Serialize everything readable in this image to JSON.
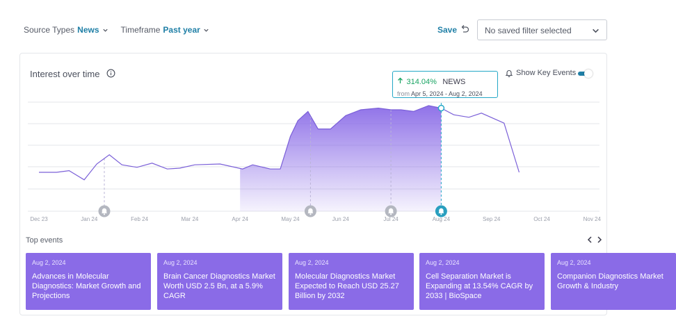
{
  "filters": {
    "source_label": "Source Types",
    "source_value": "News",
    "timeframe_label": "Timeframe",
    "timeframe_value": "Past year"
  },
  "toolbar": {
    "save_label": "Save",
    "saved_filter_placeholder": "No saved filter selected"
  },
  "card": {
    "title": "Interest over time",
    "show_key_events_label": "Show Key Events",
    "show_key_events_on": true
  },
  "tooltip": {
    "change": "314.04%",
    "source": "NEWS",
    "from_label": "from",
    "range": "Apr 5, 2024 - Aug 2, 2024"
  },
  "chart_data": {
    "type": "area",
    "x_ticks": [
      "Dec 23",
      "Jan 24",
      "Feb 24",
      "Mar 24",
      "Apr 24",
      "May 24",
      "Jun 24",
      "Jul 24",
      "Aug 24",
      "Sep 24",
      "Oct 24",
      "Nov 24"
    ],
    "series": [
      {
        "x": [
          0,
          0.35,
          0.6,
          0.9,
          1.15,
          1.4,
          1.65,
          1.95,
          2.25,
          2.55,
          2.8,
          3.1,
          3.6,
          4.05,
          4.25,
          4.6,
          4.8,
          5.0,
          5.15,
          5.35,
          5.55,
          5.8,
          6.1,
          6.4,
          6.75,
          7.0,
          7.2,
          7.45,
          7.75,
          8.0,
          8.25,
          8.55,
          8.8,
          9.25,
          9.55
        ],
        "values": [
          20,
          20,
          22,
          11,
          30,
          41,
          29,
          26,
          31,
          24,
          25,
          29,
          30,
          24,
          29,
          24,
          24,
          63,
          82,
          93,
          72,
          72,
          88,
          95,
          97,
          95,
          95,
          93,
          100,
          97,
          89,
          86,
          91,
          79,
          20
        ]
      }
    ],
    "highlight_range": [
      4.0,
      8.0
    ],
    "key_events_x": [
      1.3,
      5.4,
      7.0,
      8.0
    ],
    "active_event_x": 8.0,
    "ylim": [
      0,
      100
    ],
    "grid": true
  },
  "top_events": {
    "label": "Top events",
    "items": [
      {
        "date": "Aug 2, 2024",
        "title": "Advances in Molecular Diagnostics: Market Growth and Projections"
      },
      {
        "date": "Aug 2, 2024",
        "title": "Brain Cancer Diagnostics Market Worth USD 2.5 Bn, at a 5.9% CAGR"
      },
      {
        "date": "Aug 2, 2024",
        "title": "Molecular Diagnostics Market Expected to Reach USD 25.27 Billion by 2032"
      },
      {
        "date": "Aug 2, 2024",
        "title": "Cell Separation Market is Expanding at 13.54% CAGR by 2033 | BioSpace"
      },
      {
        "date": "Aug 2, 2024",
        "title": "Companion Diagnostics Market Growth & Industry"
      }
    ]
  },
  "colors": {
    "accent": "#1f7fa6",
    "area": "#8a6be7",
    "line": "#7a5fd8",
    "tooltip_border": "#23a7c7",
    "positive": "#19a463"
  }
}
